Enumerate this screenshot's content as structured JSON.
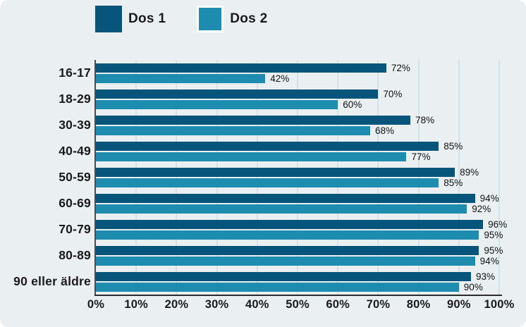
{
  "colors": {
    "background": "#eaf0f2",
    "gridline": "#d3e2ea",
    "axis": "#4c4c4c",
    "text": "#1a1a1a"
  },
  "chart_data": {
    "type": "bar",
    "orientation": "horizontal",
    "title": "",
    "categories": [
      "16-17",
      "18-29",
      "30-39",
      "40-49",
      "50-59",
      "60-69",
      "70-79",
      "80-89",
      "90 eller äldre"
    ],
    "series": [
      {
        "name": "Dos 1",
        "color": "#07557a",
        "values": [
          72,
          70,
          78,
          85,
          89,
          94,
          96,
          95,
          93
        ]
      },
      {
        "name": "Dos 2",
        "color": "#1d8cae",
        "values": [
          42,
          60,
          68,
          77,
          85,
          92,
          95,
          94,
          90
        ]
      }
    ],
    "value_label_suffix": "%",
    "xlim": [
      0,
      100
    ],
    "x_ticks": [
      "0%",
      "10%",
      "20%",
      "30%",
      "40%",
      "50%",
      "60%",
      "70%",
      "80%",
      "90%",
      "100%"
    ],
    "grid": true,
    "legend_position": "top"
  }
}
